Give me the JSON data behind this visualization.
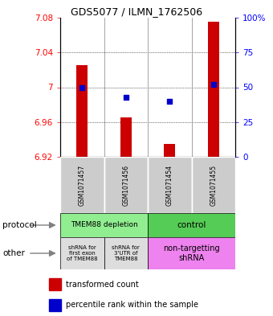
{
  "title": "GDS5077 / ILMN_1762506",
  "samples": [
    "GSM1071457",
    "GSM1071456",
    "GSM1071454",
    "GSM1071455"
  ],
  "bar_bottoms": [
    6.92,
    6.92,
    6.92,
    6.92
  ],
  "bar_tops": [
    7.025,
    6.965,
    6.935,
    7.075
  ],
  "percentile_values": [
    50,
    43,
    40,
    52
  ],
  "ylim": [
    6.92,
    7.08
  ],
  "yticks_left": [
    6.92,
    6.96,
    7.0,
    7.04,
    7.08
  ],
  "yticks_right": [
    0,
    25,
    50,
    75,
    100
  ],
  "ytick_labels_left": [
    "6.92",
    "6.96",
    "7",
    "7.04",
    "7.08"
  ],
  "ytick_labels_right": [
    "0",
    "25",
    "50",
    "75",
    "100%"
  ],
  "bar_color": "#cc0000",
  "dot_color": "#0000cc",
  "protocol_labels": [
    "TMEM88 depletion",
    "control"
  ],
  "protocol_colors": [
    "#90ee90",
    "#55cc55"
  ],
  "other_labels": [
    "shRNA for\nfirst exon\nof TMEM88",
    "shRNA for\n3'UTR of\nTMEM88",
    "non-targetting\nshRNA"
  ],
  "other_colors": [
    "#dddddd",
    "#dddddd",
    "#ee82ee"
  ],
  "sample_box_color": "#cccccc",
  "legend_bar_color": "#cc0000",
  "legend_dot_color": "#0000cc",
  "protocol_row_label": "protocol",
  "other_row_label": "other",
  "legend_text1": "transformed count",
  "legend_text2": "percentile rank within the sample"
}
